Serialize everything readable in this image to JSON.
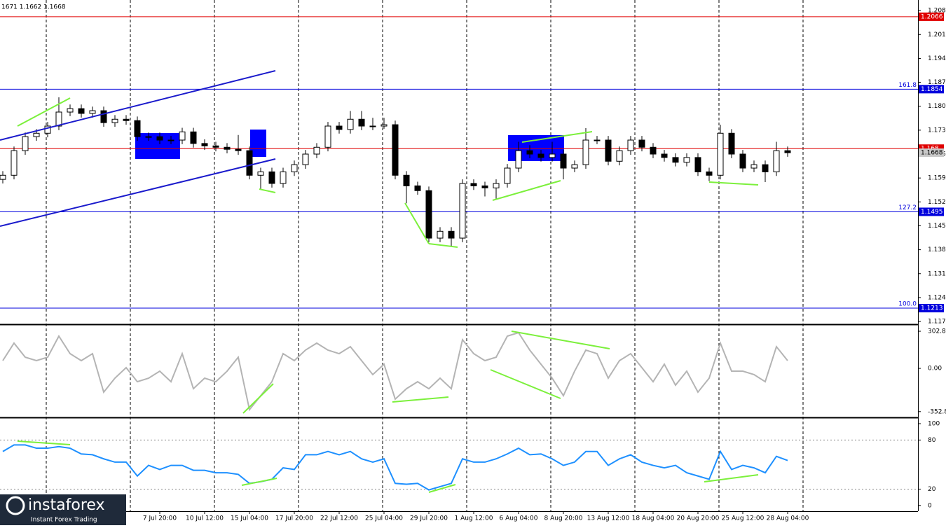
{
  "header": "1671 1.1662 1.1668",
  "logo": {
    "name": "instaforex",
    "tagline": "Instant Forex Trading"
  },
  "chart_data": [
    {
      "type": "candlestick",
      "categories": [
        null,
        null,
        null,
        null,
        null,
        null,
        null,
        null,
        null,
        null,
        null,
        null,
        null,
        null,
        "7 Jul 20:00",
        null,
        null,
        null,
        "10 Jul 12:00",
        null,
        null,
        null,
        "15 Jul 04:00",
        null,
        null,
        null,
        "17 Jul 20:00",
        null,
        null,
        null,
        "22 Jul 12:00",
        null,
        null,
        null,
        "25 Jul 04:00",
        null,
        null,
        null,
        "29 Jul 20:00",
        null,
        null,
        null,
        "1 Aug 12:00",
        null,
        null,
        null,
        "6 Aug 04:00",
        null,
        null,
        null,
        "8 Aug 20:00",
        null,
        null,
        null,
        "13 Aug 12:00",
        null,
        null,
        null,
        "18 Aug 04:00",
        null,
        null,
        null,
        "20 Aug 20:00",
        null,
        null,
        null,
        "25 Aug 12:00",
        null,
        null,
        null,
        "28 Aug 04:00"
      ],
      "open": [
        1.159,
        1.1602,
        1.1674,
        1.1715,
        1.1725,
        1.1746,
        1.1787,
        1.1797,
        1.1783,
        1.1791,
        1.1756,
        1.1766,
        1.1762,
        1.1715,
        1.1715,
        1.1705,
        1.1705,
        1.1729,
        1.1695,
        1.1688,
        1.1684,
        1.1678,
        1.1674,
        1.1602,
        1.1612,
        1.1578,
        1.1612,
        1.1633,
        1.1664,
        1.1684,
        1.1746,
        1.1736,
        1.1766,
        1.1746,
        1.1746,
        1.175,
        1.1602,
        1.1571,
        1.1557,
        1.1418,
        1.1438,
        1.1418,
        1.1578,
        1.1571,
        1.1565,
        1.1578,
        1.1623,
        1.1674,
        1.1664,
        1.1654,
        1.1664,
        1.1623,
        1.1633,
        1.1705,
        1.1705,
        1.1643,
        1.1674,
        1.1705,
        1.1684,
        1.1664,
        1.1654,
        1.164,
        1.1654,
        1.1612,
        1.1602,
        1.1725,
        1.1664,
        1.1623,
        1.1633,
        1.1612,
        1.1674
      ],
      "high": [
        1.1614,
        1.1686,
        1.1727,
        1.1737,
        1.1758,
        1.183,
        1.1809,
        1.1809,
        1.1803,
        1.1803,
        1.1778,
        1.1778,
        1.1774,
        1.1727,
        1.1727,
        1.1717,
        1.1741,
        1.1741,
        1.1707,
        1.17,
        1.1696,
        1.172,
        1.1686,
        1.1624,
        1.1624,
        1.1624,
        1.1645,
        1.1676,
        1.1696,
        1.1758,
        1.1758,
        1.179,
        1.179,
        1.177,
        1.177,
        1.1762,
        1.1614,
        1.1583,
        1.1569,
        1.145,
        1.145,
        1.159,
        1.159,
        1.1583,
        1.159,
        1.1635,
        1.17,
        1.169,
        1.1676,
        1.17,
        1.1676,
        1.1645,
        1.174,
        1.1717,
        1.1717,
        1.1686,
        1.1717,
        1.1717,
        1.1696,
        1.1676,
        1.1666,
        1.1666,
        1.1666,
        1.1624,
        1.175,
        1.1737,
        1.1676,
        1.1645,
        1.1645,
        1.17,
        1.1686
      ],
      "low": [
        1.1578,
        1.159,
        1.1662,
        1.1703,
        1.1713,
        1.1734,
        1.1775,
        1.1771,
        1.1771,
        1.1744,
        1.1744,
        1.175,
        1.1703,
        1.1703,
        1.1693,
        1.1693,
        1.1693,
        1.1683,
        1.1676,
        1.1672,
        1.1666,
        1.1662,
        1.159,
        1.156,
        1.1566,
        1.1566,
        1.16,
        1.1621,
        1.1652,
        1.1672,
        1.1724,
        1.1724,
        1.1734,
        1.1734,
        1.1738,
        1.159,
        1.152,
        1.1545,
        1.1406,
        1.1406,
        1.1392,
        1.1406,
        1.1559,
        1.154,
        1.153,
        1.1566,
        1.1611,
        1.1652,
        1.1642,
        1.1642,
        1.159,
        1.1611,
        1.1621,
        1.1693,
        1.1631,
        1.1631,
        1.1662,
        1.1672,
        1.1652,
        1.1642,
        1.1628,
        1.1628,
        1.16,
        1.1585,
        1.159,
        1.1652,
        1.1611,
        1.1611,
        1.1582,
        1.16,
        1.1656
      ],
      "close": [
        1.1602,
        1.1674,
        1.1715,
        1.1725,
        1.1746,
        1.1787,
        1.1797,
        1.1783,
        1.1791,
        1.1756,
        1.1766,
        1.1762,
        1.1715,
        1.1715,
        1.1705,
        1.1705,
        1.1729,
        1.1695,
        1.1688,
        1.1684,
        1.1678,
        1.1674,
        1.1602,
        1.1612,
        1.1578,
        1.1612,
        1.1633,
        1.1664,
        1.1684,
        1.1746,
        1.1736,
        1.1766,
        1.1746,
        1.1746,
        1.175,
        1.1602,
        1.1571,
        1.1557,
        1.1418,
        1.1438,
        1.1418,
        1.1578,
        1.1571,
        1.1565,
        1.1578,
        1.1623,
        1.1674,
        1.1664,
        1.1654,
        1.1664,
        1.1623,
        1.1633,
        1.1705,
        1.1705,
        1.1643,
        1.1674,
        1.1705,
        1.1684,
        1.1664,
        1.1654,
        1.164,
        1.1654,
        1.1612,
        1.1602,
        1.1725,
        1.1664,
        1.1623,
        1.1633,
        1.1612,
        1.1674,
        1.1668
      ],
      "up_color": "#ffffff",
      "down_color": "#000000",
      "ylim": [
        1.1168,
        1.2115
      ],
      "yticks": [
        1.2084,
        1.2014,
        1.1944,
        1.1874,
        1.1804,
        1.1734,
        1.1664,
        1.1594,
        1.1524,
        1.1454,
        1.1384,
        1.1314,
        1.1244,
        1.1174
      ],
      "hlines": [
        {
          "value": 1.2066,
          "color": "#e00000"
        },
        {
          "value": 1.1854,
          "color": "#0000dd",
          "label": "161.8"
        },
        {
          "value": 1.168,
          "color": "#e00000"
        },
        {
          "value": 1.1495,
          "color": "#0000dd",
          "label": "127.2"
        },
        {
          "value": 1.1213,
          "color": "#0000dd",
          "label": "100.0"
        }
      ]
    },
    {
      "type": "line",
      "color": "#b4b4b4",
      "values": [
        63,
        206,
        91,
        63,
        91,
        263,
        120,
        63,
        120,
        -194,
        -80,
        6,
        -109,
        -80,
        -23,
        -109,
        120,
        -166,
        -80,
        -109,
        -23,
        91,
        -337,
        -223,
        -109,
        120,
        63,
        149,
        206,
        149,
        120,
        177,
        63,
        -51,
        34,
        -251,
        -166,
        -109,
        -166,
        -80,
        -166,
        234,
        120,
        63,
        91,
        263,
        291,
        149,
        34,
        -80,
        -223,
        -23,
        149,
        120,
        -80,
        63,
        120,
        6,
        -109,
        34,
        -137,
        -23,
        -194,
        -80,
        206,
        -23,
        -23,
        -51,
        -109,
        177,
        63
      ],
      "ylim": [
        -394,
        343
      ],
      "yticks": [
        302.8654,
        {
          "value": 0,
          "label": "0.00"
        },
        -352.872
      ]
    },
    {
      "type": "line",
      "color": "#1e90ff",
      "values": [
        66,
        74,
        74,
        70,
        70,
        72,
        70,
        63,
        62,
        57,
        53,
        53,
        36,
        49,
        44,
        49,
        49,
        43,
        43,
        40,
        40,
        38,
        27,
        29,
        32,
        46,
        44,
        62,
        62,
        66,
        62,
        66,
        57,
        53,
        57,
        27,
        26,
        27,
        19,
        23,
        27,
        57,
        53,
        53,
        57,
        63,
        70,
        62,
        63,
        57,
        49,
        53,
        66,
        66,
        49,
        57,
        62,
        53,
        49,
        46,
        49,
        40,
        36,
        32,
        66,
        44,
        49,
        46,
        40,
        60,
        55
      ],
      "ylim": [
        -7,
        106
      ],
      "yticks": [
        100,
        80,
        20,
        0
      ],
      "levels": [
        80,
        20
      ]
    }
  ]
}
